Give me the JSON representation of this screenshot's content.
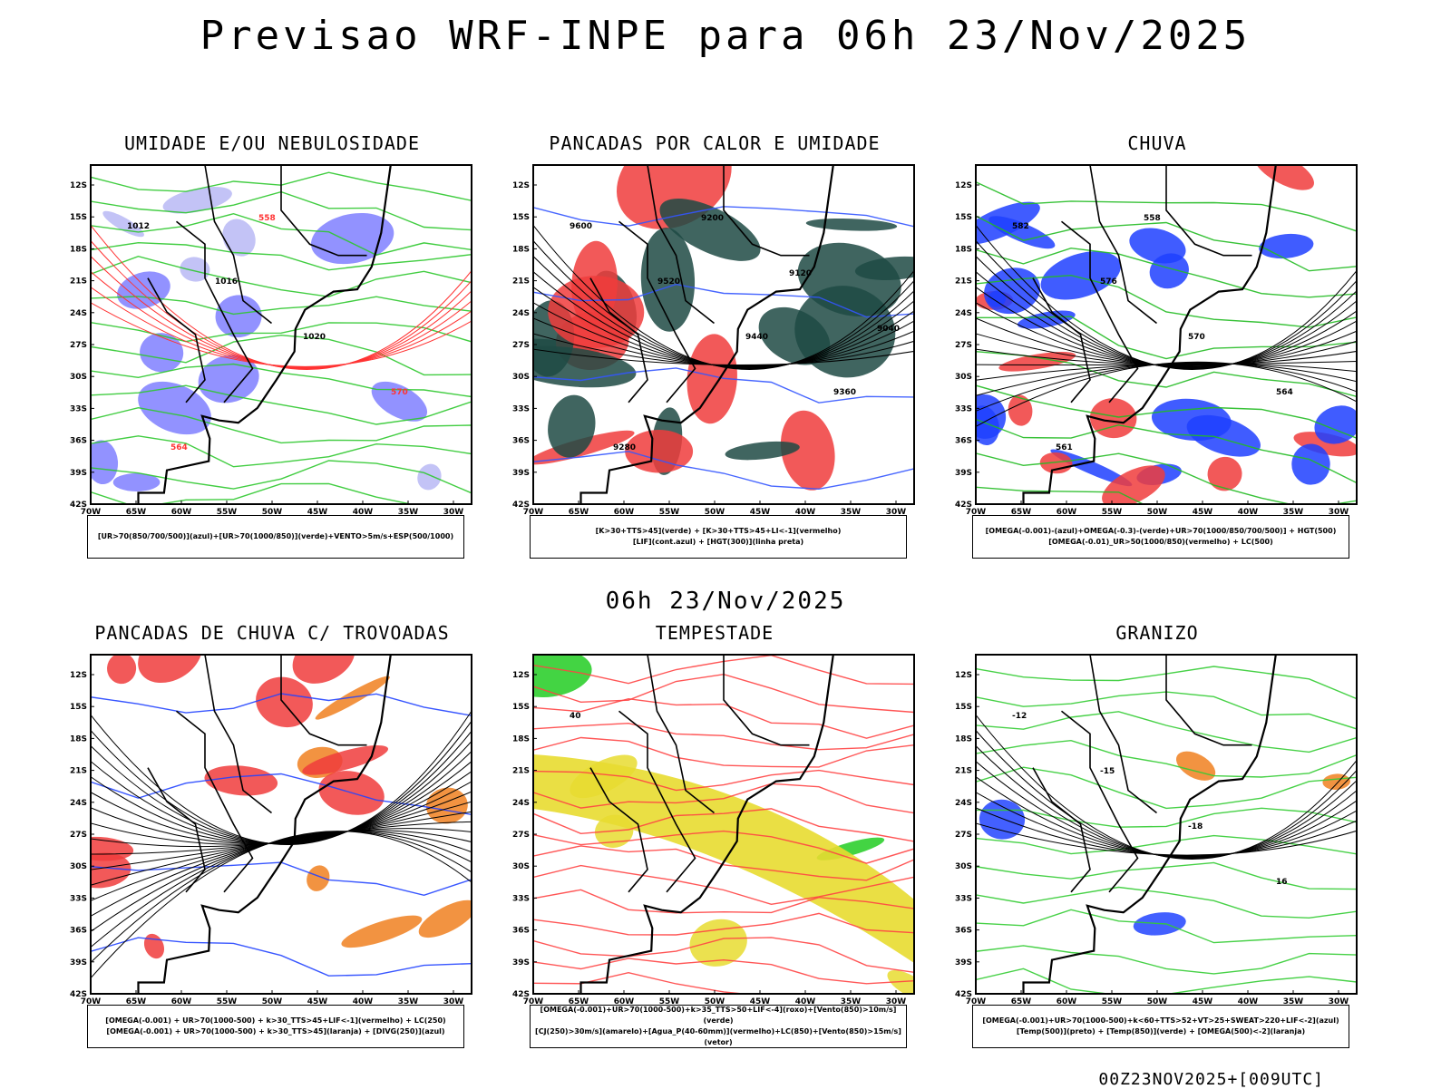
{
  "header": {
    "title": "Previsao WRF-INPE  para 06h 23/Nov/2025"
  },
  "mid_title": "06h 23/Nov/2025",
  "footer": "00Z23NOV2025+[009UTC]",
  "axes": {
    "lat_labels": [
      "12S",
      "15S",
      "18S",
      "21S",
      "24S",
      "27S",
      "30S",
      "33S",
      "36S",
      "39S",
      "42S"
    ],
    "lon_labels": [
      "70W",
      "65W",
      "60W",
      "55W",
      "50W",
      "45W",
      "40W",
      "35W",
      "30W"
    ]
  },
  "panels": [
    {
      "title": "UMIDADE E/OU NEBULOSIDADE",
      "legend": [
        "[UR>70(850/700/500)](azul)+[UR>70(1000/850)](verde)+VENTO>5m/s+ESP(500/1000)"
      ],
      "contour_labels": [
        "1012",
        "1016",
        "1020",
        "570",
        "564",
        "558"
      ],
      "colors": {
        "fill1": "#7f7fff",
        "fill2": "#b8b8f4",
        "lines": "#2ec82e",
        "contour2": "#ff3333"
      }
    },
    {
      "title": "PANCADAS POR CALOR E UMIDADE",
      "legend": [
        "[K>30+TTS>45](verde) + [K>30+TTS>45+LI<-1](vermelho)",
        "[LIF](cont.azul) + [HGT(300)](linha preta)"
      ],
      "contour_labels": [
        "9600",
        "9520",
        "9440",
        "9360",
        "9280",
        "9200",
        "9120",
        "9040"
      ],
      "colors": {
        "fill1": "#1f4a44",
        "fill2": "#f03c3c",
        "lines": "#3355ff",
        "contour2": "#000000"
      }
    },
    {
      "title": "CHUVA",
      "legend": [
        "[OMEGA(-0.001)-(azul)+OMEGA(-0.3)-(verde)+UR>70(1000/850/700/500)] + HGT(500)",
        "[OMEGA(-0.01)_UR>50(1000/850)(vermelho) + LC(500)"
      ],
      "contour_labels": [
        "582",
        "576",
        "570",
        "564",
        "561",
        "558"
      ],
      "colors": {
        "fill1": "#1e40ff",
        "fill2": "#f03c3c",
        "lines": "#22bb22",
        "contour2": "#000000"
      }
    },
    {
      "title": "PANCADAS DE CHUVA C/ TROVOADAS",
      "legend": [
        "[OMEGA(-0.001) + UR>70(1000-500) + k>30_TTS>45+LIF<-1](vermelho) + LC(250)",
        "[OMEGA(-0.001) + UR>70(1000-500) + k>30_TTS>45](laranja) + [DIVG(250)](azul)"
      ],
      "contour_labels": [],
      "colors": {
        "fill1": "#f03c3c",
        "fill2": "#f08020",
        "lines": "#2244ff",
        "contour2": "#000000"
      }
    },
    {
      "title": "TEMPESTADE",
      "legend": [
        "[OMEGA(-0.001)+UR>70(1000-500)+k>35_TTS>50+LIF<-4](roxo)+[Vento(850)>10m/s](verde)",
        "[CJ(250)>30m/s](amarelo)+[Agua_P(40-60mm)](vermelho)+LC(850)+[Vento(850)>15m/s](vetor)"
      ],
      "contour_labels": [
        "40"
      ],
      "colors": {
        "fill1": "#e8dc30",
        "fill2": "#22cc22",
        "lines": "#ff4444",
        "contour2": "#000000"
      }
    },
    {
      "title": "GRANIZO",
      "legend": [
        "[OMEGA(-0.001)+UR>70(1000-500)+k<60+TTS>52+VT>25+SWEAT>220+LIF<-2](azul)",
        "[Temp(500)](preto) + [Temp(850)](verde) + [OMEGA(500)<-2](laranja)"
      ],
      "contour_labels": [
        "-12",
        "-15",
        "-18",
        "16"
      ],
      "colors": {
        "fill1": "#f08020",
        "fill2": "#2244ff",
        "lines": "#33cc33",
        "contour2": "#000000"
      }
    }
  ]
}
